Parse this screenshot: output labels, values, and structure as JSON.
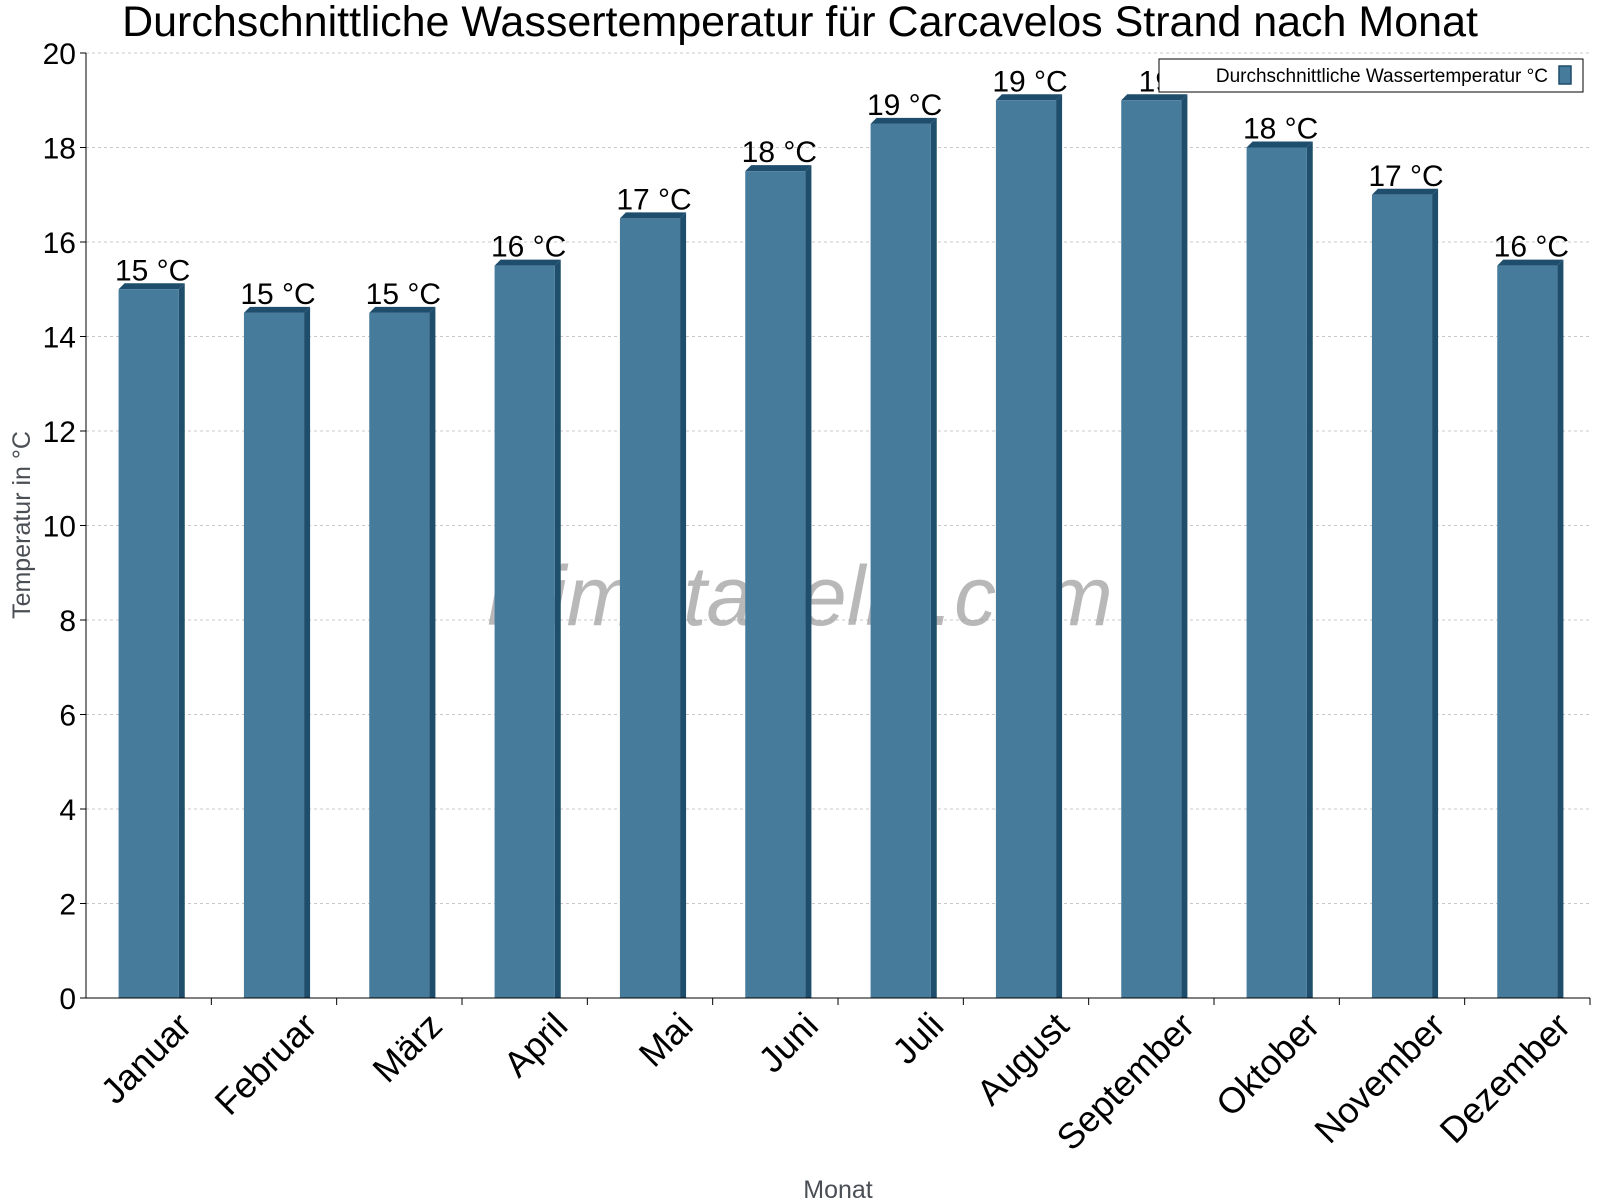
{
  "chart_data": {
    "type": "bar",
    "title": "Durchschnittliche Wassertemperatur für Carcavelos Strand nach Monat",
    "xlabel": "Monat",
    "ylabel": "Temperatur in °C",
    "categories": [
      "Januar",
      "Februar",
      "März",
      "April",
      "Mai",
      "Juni",
      "Juli",
      "August",
      "September",
      "Oktober",
      "November",
      "Dezember"
    ],
    "series": [
      {
        "name": "Durchschnittliche Wassertemperatur °C",
        "values": [
          15,
          14.5,
          14.5,
          15.5,
          16.5,
          17.5,
          18.5,
          19,
          19,
          18,
          17,
          15.5
        ],
        "data_labels": [
          "15 °C",
          "15 °C",
          "15 °C",
          "16 °C",
          "17 °C",
          "18 °C",
          "19 °C",
          "19 °C",
          "19",
          "18 °C",
          "17 °C",
          "16 °C"
        ]
      }
    ],
    "ylim": [
      0,
      20
    ],
    "yticks": [
      0,
      2,
      4,
      6,
      8,
      10,
      12,
      14,
      16,
      18,
      20
    ],
    "grid": true,
    "legend_position": "top-right",
    "colors": {
      "bar": "#467b9c",
      "bar_shade": "#1f4d6c",
      "grid": "#c8c8c8"
    }
  },
  "watermark": "klimatabelle.com"
}
